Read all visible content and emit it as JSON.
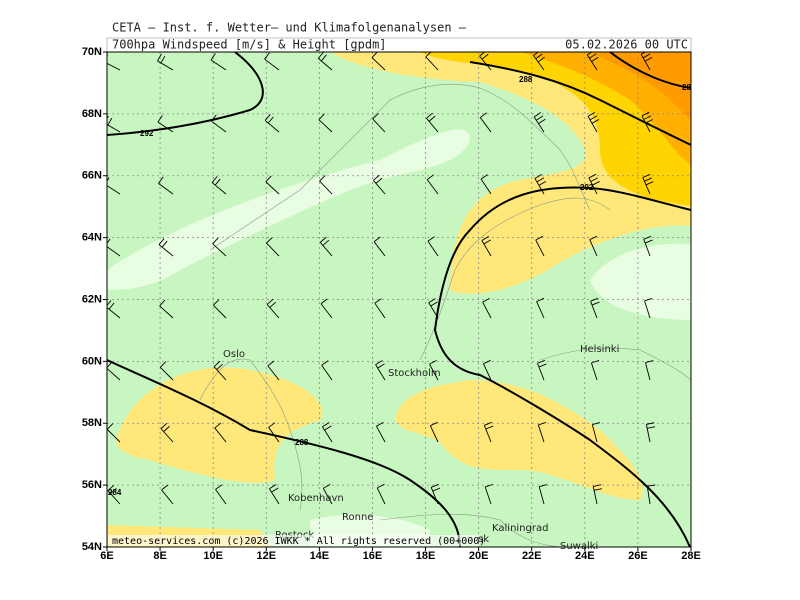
{
  "header": {
    "title": "CETA – Inst. f. Wetter– und Klimafolgenanalysen –",
    "subtitle": "700hpa Windspeed [m/s] & Height [gpdm]",
    "date": "05.02.2026 00 UTC"
  },
  "axes": {
    "lat_labels": [
      "70N",
      "68N",
      "66N",
      "64N",
      "62N",
      "60N",
      "58N",
      "56N",
      "54N"
    ],
    "lon_labels": [
      "6E",
      "8E",
      "10E",
      "12E",
      "14E",
      "16E",
      "18E",
      "20E",
      "22E",
      "24E",
      "26E",
      "28E"
    ]
  },
  "contour_labels": [
    "292",
    "288",
    "28",
    "292",
    "288",
    "284"
  ],
  "places": [
    "Oslo",
    "Stockholm",
    "Helsinki",
    "Kobenhavn",
    "Ronne",
    "Rostock",
    "Kaliningrad",
    "Suwalki",
    "sk"
  ],
  "footer": "meteo-services.com (c)2026 IWKK * All rights reserved (00+000)"
}
